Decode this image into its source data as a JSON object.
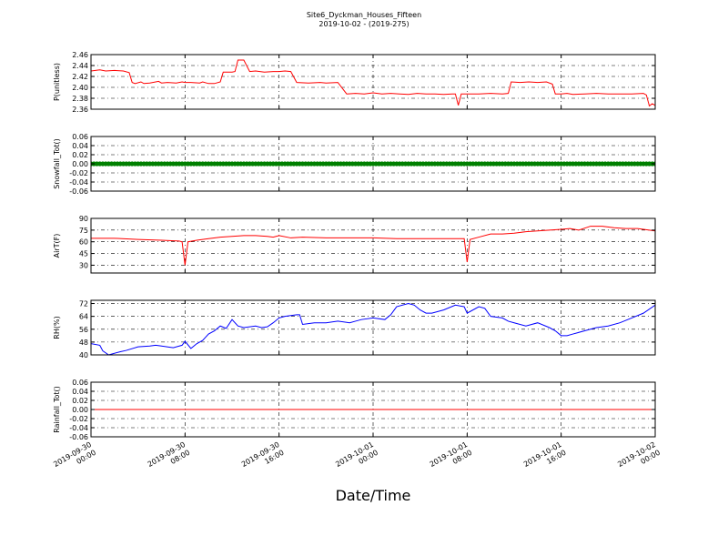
{
  "figure": {
    "title_line1": "Site6_Dyckman_Houses_Fifteen",
    "title_line2": "2019-10-02 - (2019-275)",
    "xlabel": "Date/Time"
  },
  "x_axis": {
    "range": [
      "2019-09-30 00:00",
      "2019-10-02 00:00"
    ],
    "ticks": [
      {
        "value": "2019-09-30 00:00",
        "line1": "2019-09-30",
        "line2": "00:00"
      },
      {
        "value": "2019-09-30 08:00",
        "line1": "2019-09-30",
        "line2": "08:00"
      },
      {
        "value": "2019-09-30 16:00",
        "line1": "2019-09-30",
        "line2": "16:00"
      },
      {
        "value": "2019-10-01 00:00",
        "line1": "2019-10-01",
        "line2": "00:00"
      },
      {
        "value": "2019-10-01 08:00",
        "line1": "2019-10-01",
        "line2": "08:00"
      },
      {
        "value": "2019-10-01 16:00",
        "line1": "2019-10-01",
        "line2": "16:00"
      },
      {
        "value": "2019-10-02 00:00",
        "line1": "2019-10-02",
        "line2": "00:00"
      }
    ]
  },
  "chart_data": [
    {
      "type": "line",
      "ylabel": "P(unitless)",
      "ylim": [
        2.36,
        2.46
      ],
      "yticks": [
        "2.36",
        "2.38",
        "2.40",
        "2.42",
        "2.44",
        "2.46"
      ],
      "grid": true,
      "series": [
        {
          "color": "#ff0000",
          "marker": "none",
          "x": [
            "2019-09-30 00:00",
            "2019-09-30 00:45",
            "2019-09-30 01:15",
            "2019-09-30 02:00",
            "2019-09-30 02:45",
            "2019-09-30 03:15",
            "2019-09-30 03:30",
            "2019-09-30 03:45",
            "2019-09-30 04:15",
            "2019-09-30 04:30",
            "2019-09-30 05:00",
            "2019-09-30 05:45",
            "2019-09-30 06:00",
            "2019-09-30 06:30",
            "2019-09-30 07:15",
            "2019-09-30 07:45",
            "2019-09-30 08:00",
            "2019-09-30 08:30",
            "2019-09-30 09:15",
            "2019-09-30 09:30",
            "2019-09-30 10:00",
            "2019-09-30 10:30",
            "2019-09-30 11:00",
            "2019-09-30 11:15",
            "2019-09-30 12:00",
            "2019-09-30 12:15",
            "2019-09-30 12:30",
            "2019-09-30 13:00",
            "2019-09-30 13:30",
            "2019-09-30 14:00",
            "2019-09-30 14:45",
            "2019-09-30 15:30",
            "2019-09-30 16:00",
            "2019-09-30 16:30",
            "2019-09-30 17:00",
            "2019-09-30 17:30",
            "2019-09-30 18:30",
            "2019-09-30 19:30",
            "2019-09-30 20:00",
            "2019-09-30 21:00",
            "2019-09-30 21:45",
            "2019-09-30 22:30",
            "2019-09-30 23:15",
            "2019-10-01 00:00",
            "2019-10-01 00:45",
            "2019-10-01 01:30",
            "2019-10-01 02:15",
            "2019-10-01 03:00",
            "2019-10-01 03:45",
            "2019-10-01 04:30",
            "2019-10-01 05:15",
            "2019-10-01 06:00",
            "2019-10-01 06:45",
            "2019-10-01 07:00",
            "2019-10-01 07:15",
            "2019-10-01 07:30",
            "2019-10-01 08:00",
            "2019-10-01 09:00",
            "2019-10-01 10:00",
            "2019-10-01 11:00",
            "2019-10-01 11:30",
            "2019-10-01 11:45",
            "2019-10-01 12:30",
            "2019-10-01 13:15",
            "2019-10-01 14:00",
            "2019-10-01 14:45",
            "2019-10-01 15:15",
            "2019-10-01 15:30",
            "2019-10-01 16:00",
            "2019-10-01 16:30",
            "2019-10-01 17:00",
            "2019-10-01 18:00",
            "2019-10-01 19:00",
            "2019-10-01 20:00",
            "2019-10-01 21:00",
            "2019-10-01 22:00",
            "2019-10-01 23:00",
            "2019-10-01 23:15",
            "2019-10-01 23:30",
            "2019-10-01 23:45",
            "2019-10-02 00:00"
          ],
          "y": [
            2.43,
            2.432,
            2.43,
            2.431,
            2.43,
            2.427,
            2.409,
            2.407,
            2.41,
            2.407,
            2.408,
            2.411,
            2.408,
            2.409,
            2.408,
            2.41,
            2.409,
            2.409,
            2.408,
            2.41,
            2.407,
            2.407,
            2.41,
            2.428,
            2.428,
            2.429,
            2.45,
            2.45,
            2.429,
            2.43,
            2.428,
            2.429,
            2.429,
            2.43,
            2.429,
            2.409,
            2.408,
            2.409,
            2.408,
            2.409,
            2.388,
            2.389,
            2.388,
            2.39,
            2.388,
            2.389,
            2.388,
            2.387,
            2.389,
            2.388,
            2.388,
            2.387,
            2.388,
            2.388,
            2.367,
            2.388,
            2.388,
            2.388,
            2.389,
            2.388,
            2.389,
            2.41,
            2.409,
            2.41,
            2.409,
            2.41,
            2.406,
            2.388,
            2.388,
            2.389,
            2.387,
            2.388,
            2.389,
            2.388,
            2.388,
            2.388,
            2.389,
            2.386,
            2.366,
            2.37,
            2.367
          ]
        }
      ]
    },
    {
      "type": "scatter",
      "ylabel": "Snowfall_Tot()",
      "ylim": [
        -0.06,
        0.06
      ],
      "yticks": [
        "-0.06",
        "-0.04",
        "-0.02",
        "0.00",
        "0.02",
        "0.04",
        "0.06"
      ],
      "grid": true,
      "series": [
        {
          "color": "#008000",
          "marker": "circle",
          "x_start": "2019-09-30 00:00",
          "x_end": "2019-10-02 00:00",
          "x_step_minutes": 15,
          "y_constant": 0.0
        }
      ]
    },
    {
      "type": "line",
      "ylabel": "AirT(F)",
      "ylim": [
        20,
        90
      ],
      "yticks": [
        "30",
        "45",
        "60",
        "75",
        "90"
      ],
      "grid": true,
      "series": [
        {
          "color": "#ff0000",
          "marker": "none",
          "x": [
            "2019-09-30 00:00",
            "2019-09-30 02:00",
            "2019-09-30 04:00",
            "2019-09-30 06:00",
            "2019-09-30 07:30",
            "2019-09-30 07:45",
            "2019-09-30 08:00",
            "2019-09-30 08:15",
            "2019-09-30 09:00",
            "2019-09-30 10:00",
            "2019-09-30 11:00",
            "2019-09-30 12:00",
            "2019-09-30 13:00",
            "2019-09-30 14:00",
            "2019-09-30 15:00",
            "2019-09-30 15:30",
            "2019-09-30 16:00",
            "2019-09-30 17:00",
            "2019-09-30 18:00",
            "2019-09-30 20:00",
            "2019-09-30 22:00",
            "2019-10-01 00:00",
            "2019-10-01 02:00",
            "2019-10-01 04:00",
            "2019-10-01 06:00",
            "2019-10-01 07:45",
            "2019-10-01 08:00",
            "2019-10-01 08:15",
            "2019-10-01 09:00",
            "2019-10-01 10:00",
            "2019-10-01 11:00",
            "2019-10-01 12:00",
            "2019-10-01 13:00",
            "2019-10-01 14:00",
            "2019-10-01 15:00",
            "2019-10-01 16:00",
            "2019-10-01 16:45",
            "2019-10-01 17:30",
            "2019-10-01 18:30",
            "2019-10-01 19:30",
            "2019-10-01 20:30",
            "2019-10-01 21:30",
            "2019-10-01 22:30",
            "2019-10-01 23:00",
            "2019-10-01 23:30",
            "2019-10-02 00:00"
          ],
          "y": [
            64.5,
            64.5,
            63,
            62,
            61,
            60,
            30,
            60,
            62,
            64,
            66,
            67,
            68,
            68,
            67,
            66,
            68,
            65,
            66,
            65,
            65,
            65,
            64,
            64,
            64,
            64,
            34,
            63,
            66,
            70,
            70,
            71,
            73,
            74,
            75,
            76,
            77,
            75,
            80,
            80,
            78,
            77,
            77,
            76,
            75,
            74
          ]
        }
      ]
    },
    {
      "type": "line",
      "ylabel": "RH(%)",
      "ylim": [
        40,
        74
      ],
      "yticks": [
        "40",
        "48",
        "56",
        "64",
        "72"
      ],
      "grid": true,
      "series": [
        {
          "color": "#0000ff",
          "marker": "none",
          "x": [
            "2019-09-30 00:00",
            "2019-09-30 00:45",
            "2019-09-30 01:00",
            "2019-09-30 01:30",
            "2019-09-30 02:30",
            "2019-09-30 03:00",
            "2019-09-30 04:00",
            "2019-09-30 05:00",
            "2019-09-30 05:30",
            "2019-09-30 06:00",
            "2019-09-30 07:00",
            "2019-09-30 07:45",
            "2019-09-30 08:00",
            "2019-09-30 08:30",
            "2019-09-30 09:00",
            "2019-09-30 09:30",
            "2019-09-30 09:45",
            "2019-09-30 10:00",
            "2019-09-30 10:30",
            "2019-09-30 11:00",
            "2019-09-30 11:30",
            "2019-09-30 12:00",
            "2019-09-30 12:30",
            "2019-09-30 13:00",
            "2019-09-30 14:00",
            "2019-09-30 14:30",
            "2019-09-30 15:00",
            "2019-09-30 15:30",
            "2019-09-30 16:00",
            "2019-09-30 16:30",
            "2019-09-30 17:00",
            "2019-09-30 17:30",
            "2019-09-30 17:45",
            "2019-09-30 18:00",
            "2019-09-30 19:00",
            "2019-09-30 20:00",
            "2019-09-30 21:00",
            "2019-09-30 22:00",
            "2019-09-30 22:30",
            "2019-09-30 23:00",
            "2019-10-01 00:00",
            "2019-10-01 01:00",
            "2019-10-01 01:30",
            "2019-10-01 02:00",
            "2019-10-01 03:00",
            "2019-10-01 03:30",
            "2019-10-01 04:00",
            "2019-10-01 04:30",
            "2019-10-01 05:00",
            "2019-10-01 06:00",
            "2019-10-01 07:00",
            "2019-10-01 07:45",
            "2019-10-01 08:00",
            "2019-10-01 09:00",
            "2019-10-01 09:30",
            "2019-10-01 10:00",
            "2019-10-01 11:00",
            "2019-10-01 11:30",
            "2019-10-01 12:00",
            "2019-10-01 13:00",
            "2019-10-01 14:00",
            "2019-10-01 15:00",
            "2019-10-01 15:30",
            "2019-10-01 16:00",
            "2019-10-01 16:30",
            "2019-10-01 17:00",
            "2019-10-01 18:00",
            "2019-10-01 19:00",
            "2019-10-01 20:00",
            "2019-10-01 21:00",
            "2019-10-01 22:00",
            "2019-10-01 23:00",
            "2019-10-02 00:00"
          ],
          "y": [
            47,
            46,
            42.5,
            40,
            42,
            42.8,
            45,
            45.5,
            46,
            45.5,
            44.5,
            46,
            48.5,
            44,
            47,
            49,
            51,
            53,
            55,
            58,
            56.5,
            62,
            58,
            57,
            58,
            57,
            57.5,
            60,
            63,
            64,
            64.5,
            65,
            65,
            59,
            60,
            60,
            61,
            60,
            61,
            62,
            63,
            62,
            65,
            70,
            72,
            71,
            68,
            66,
            66,
            68,
            71,
            70,
            66,
            70,
            69,
            64,
            63,
            61,
            60,
            58,
            60,
            57,
            55,
            52,
            52,
            53,
            55,
            57,
            58,
            60,
            63,
            66,
            71
          ]
        }
      ]
    },
    {
      "type": "line",
      "ylabel": "Rainfall_Tot()",
      "ylim": [
        -0.06,
        0.06
      ],
      "yticks": [
        "-0.06",
        "-0.04",
        "-0.02",
        "0.00",
        "0.02",
        "0.04",
        "0.06"
      ],
      "grid": true,
      "series": [
        {
          "color": "#ff0000",
          "marker": "none",
          "x": [
            "2019-09-30 00:00",
            "2019-10-02 00:00"
          ],
          "y": [
            0.0,
            0.0
          ]
        }
      ]
    }
  ]
}
